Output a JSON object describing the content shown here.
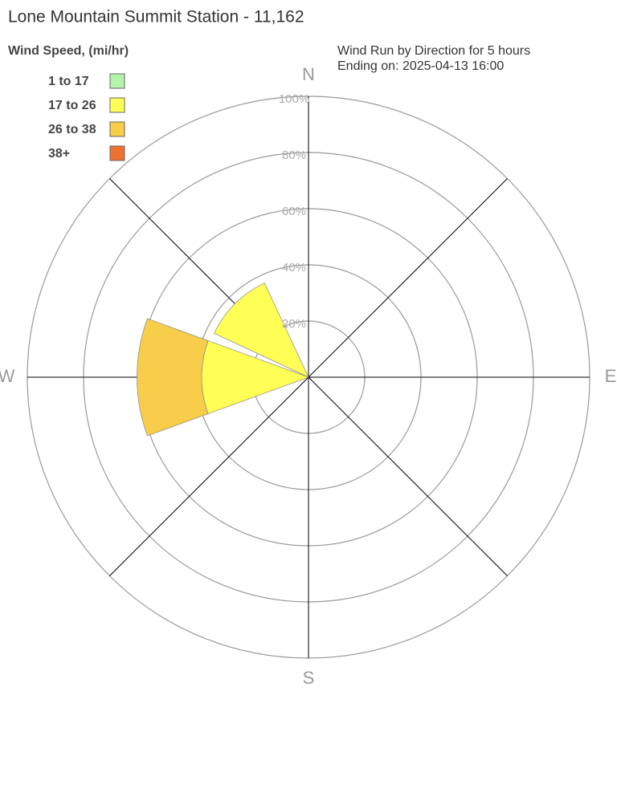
{
  "chart_data": {
    "type": "windrose",
    "title": "Lone Mountain Summit Station - 11,162",
    "legend_title": "Wind Speed, (mi/hr)",
    "subtitle": [
      "Wind Run by Direction for 5 hours",
      "Ending on: 2025-04-13 16:00"
    ],
    "categories": [
      "N",
      null,
      "E",
      null,
      "S",
      null,
      "W",
      null
    ],
    "series": [
      {
        "name": "1 to 17",
        "color": "#b2f5a8",
        "values": [
          0,
          0,
          0,
          0,
          0,
          0,
          0,
          0
        ]
      },
      {
        "name": "17 to 26",
        "color": "#ffff55",
        "values": [
          0,
          0,
          0,
          0,
          0,
          0,
          38,
          37
        ]
      },
      {
        "name": "26 to 38",
        "color": "#f7cd4a",
        "values": [
          0,
          0,
          0,
          0,
          0,
          0,
          23,
          0
        ]
      },
      {
        "name": "38+",
        "color": "#f07030",
        "values": [
          0,
          0,
          0,
          0,
          0,
          0,
          0,
          0
        ]
      }
    ],
    "rlim": [
      0,
      100
    ],
    "rticks": [
      {
        "value": 20,
        "label": "20%"
      },
      {
        "value": 40,
        "label": "40%"
      },
      {
        "value": 60,
        "label": "60%"
      },
      {
        "value": 80,
        "label": "80%"
      },
      {
        "value": 100,
        "label": "100%"
      }
    ]
  }
}
